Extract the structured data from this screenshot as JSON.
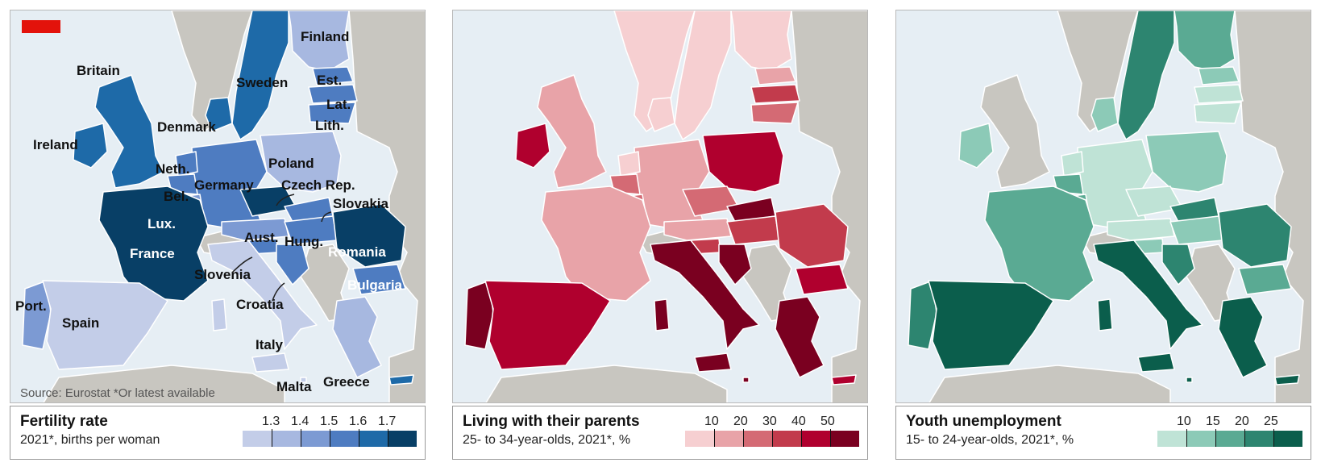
{
  "panels": [
    {
      "title": "Fertility rate",
      "subtitle": "2021*, births per woman",
      "ticks": [
        "1.3",
        "1.4",
        "1.5",
        "1.6",
        "1.7"
      ],
      "scale_colors": [
        "#c3cde8",
        "#a7b8e0",
        "#7c9ad3",
        "#4e7cc1",
        "#1e6aa8",
        "#083f66"
      ],
      "source": "Source: Eurostat    *Or latest available",
      "labels": {
        "finland": "Finland",
        "britain": "Britain",
        "sweden": "Sweden",
        "est": "Est.",
        "lat": "Lat.",
        "denmark": "Denmark",
        "lith": "Lith.",
        "ireland": "Ireland",
        "poland": "Poland",
        "neth": "Neth.",
        "germany": "Germany",
        "czech": "Czech Rep.",
        "bel": "Bel.",
        "slovakia": "Slovakia",
        "lux": "Lux.",
        "aust": "Aust.",
        "hung": "Hung.",
        "france": "France",
        "romania": "Romania",
        "slovenia": "Slovenia",
        "bulgaria": "Bulgaria",
        "croatia": "Croatia",
        "port": "Port.",
        "spain": "Spain",
        "italy": "Italy",
        "malta": "Malta",
        "greece": "Greece"
      },
      "colors": {
        "finland": "#a7b8e0",
        "sweden": "#1e6aa8",
        "norway": "#c8c6c0",
        "britain": "#1e6aa8",
        "ireland": "#1e6aa8",
        "denmark": "#1e6aa8",
        "estonia": "#4e7cc1",
        "latvia": "#4e7cc1",
        "lithuania": "#4e7cc1",
        "poland": "#a7b8e0",
        "germany": "#4e7cc1",
        "netherlands": "#4e7cc1",
        "belgium": "#4e7cc1",
        "luxembourg": "#7c9ad3",
        "france": "#083f66",
        "czech": "#083f66",
        "slovakia": "#4e7cc1",
        "austria": "#7c9ad3",
        "hungary": "#4e7cc1",
        "slovenia": "#4e7cc1",
        "croatia": "#4e7cc1",
        "romania": "#083f66",
        "bulgaria": "#4e7cc1",
        "portugal": "#7c9ad3",
        "spain": "#c3cde8",
        "italy": "#c3cde8",
        "greece": "#a7b8e0",
        "malta": "#c3cde8",
        "cyprus": "#1e6aa8"
      }
    },
    {
      "title": "Living with their parents",
      "subtitle": "25- to 34-year-olds, 2021*, %",
      "ticks": [
        "10",
        "20",
        "30",
        "40",
        "50"
      ],
      "scale_colors": [
        "#f6cfd1",
        "#e8a3a8",
        "#d46a74",
        "#c23b4c",
        "#b0002e",
        "#7a0020"
      ],
      "colors": {
        "finland": "#f6cfd1",
        "sweden": "#f6cfd1",
        "norway": "#f6cfd1",
        "britain": "#e8a3a8",
        "ireland": "#b0002e",
        "denmark": "#f6cfd1",
        "estonia": "#e8a3a8",
        "latvia": "#c23b4c",
        "lithuania": "#d46a74",
        "poland": "#b0002e",
        "germany": "#e8a3a8",
        "netherlands": "#f6cfd1",
        "belgium": "#d46a74",
        "luxembourg": "#d46a74",
        "france": "#e8a3a8",
        "czech": "#d46a74",
        "slovakia": "#7a0020",
        "austria": "#e8a3a8",
        "hungary": "#c23b4c",
        "slovenia": "#c23b4c",
        "croatia": "#7a0020",
        "romania": "#c23b4c",
        "bulgaria": "#b0002e",
        "portugal": "#7a0020",
        "spain": "#b0002e",
        "italy": "#7a0020",
        "greece": "#7a0020",
        "malta": "#7a0020",
        "cyprus": "#b0002e"
      }
    },
    {
      "title": "Youth unemployment",
      "subtitle": "15- to 24-year-olds, 2021*, %",
      "ticks": [
        "10",
        "15",
        "20",
        "25"
      ],
      "scale_colors": [
        "#bfe3d6",
        "#8ccab7",
        "#5aaa93",
        "#2d8570",
        "#0b5e4c"
      ],
      "colors": {
        "finland": "#5aaa93",
        "sweden": "#2d8570",
        "norway": "#c8c6c0",
        "britain": "#c8c6c0",
        "ireland": "#8ccab7",
        "denmark": "#8ccab7",
        "estonia": "#8ccab7",
        "latvia": "#bfe3d6",
        "lithuania": "#bfe3d6",
        "poland": "#8ccab7",
        "germany": "#bfe3d6",
        "netherlands": "#bfe3d6",
        "belgium": "#5aaa93",
        "luxembourg": "#5aaa93",
        "france": "#5aaa93",
        "czech": "#bfe3d6",
        "slovakia": "#2d8570",
        "austria": "#bfe3d6",
        "hungary": "#8ccab7",
        "slovenia": "#8ccab7",
        "croatia": "#2d8570",
        "romania": "#2d8570",
        "bulgaria": "#5aaa93",
        "portugal": "#2d8570",
        "spain": "#0b5e4c",
        "italy": "#0b5e4c",
        "greece": "#0b5e4c",
        "malta": "#0b5e4c",
        "cyprus": "#0b5e4c"
      }
    }
  ],
  "brand_color": "#e3120b"
}
